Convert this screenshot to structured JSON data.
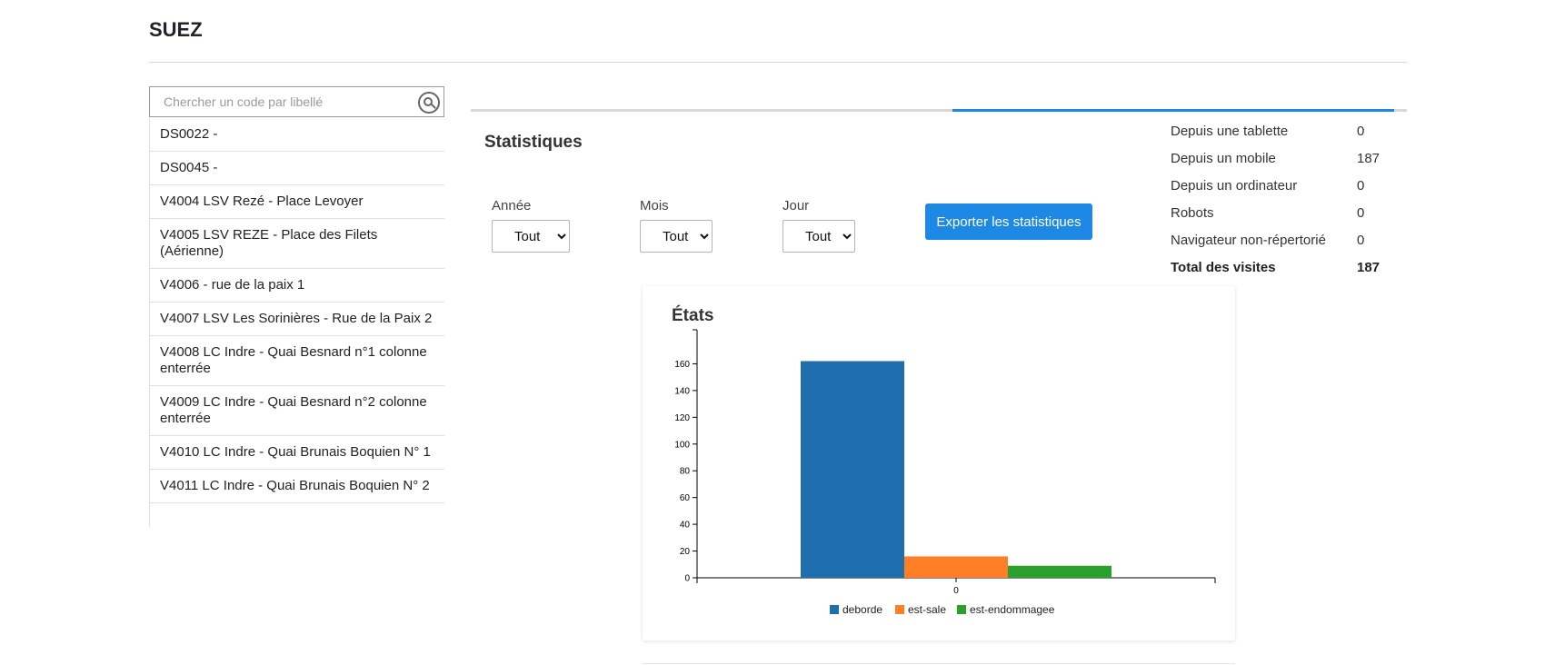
{
  "header": {
    "brand": "SUEZ"
  },
  "search": {
    "placeholder": "Chercher un code par libellé"
  },
  "codes": [
    "DS0022 -",
    "DS0045 -",
    "V4004 LSV Rezé - Place Levoyer",
    "V4005 LSV REZE - Place des Filets (Aérienne)",
    "V4006 - rue de la paix 1",
    "V4007 LSV Les Sorinières - Rue de la Paix 2",
    "V4008 LC Indre - Quai Besnard n°1 colonne enterrée",
    "V4009 LC Indre - Quai Besnard n°2 colonne enterrée",
    "V4010 LC Indre - Quai Brunais Boquien N° 1",
    "V4011 LC Indre - Quai Brunais Boquien N° 2"
  ],
  "stats": {
    "title": "Statistiques",
    "filters": {
      "annee": {
        "label": "Année",
        "value": "Tout"
      },
      "mois": {
        "label": "Mois",
        "value": "Tout"
      },
      "jour": {
        "label": "Jour",
        "value": "Tout"
      }
    },
    "export_label": "Exporter les statistiques"
  },
  "visits": [
    {
      "label": "Depuis une tablette",
      "value": "0"
    },
    {
      "label": "Depuis un mobile",
      "value": "187"
    },
    {
      "label": "Depuis un ordinateur",
      "value": "0"
    },
    {
      "label": "Robots",
      "value": "0"
    },
    {
      "label": "Navigateur non-répertorié",
      "value": "0"
    }
  ],
  "visits_total": {
    "label": "Total des visites",
    "value": "187"
  },
  "colors": {
    "accent": "#1e88e5",
    "deborde": "#1f6fae",
    "est_sale": "#ff7f27",
    "est_endommagee": "#2ca02c"
  },
  "chart_data": {
    "type": "bar",
    "title": "États",
    "categories": [
      "0"
    ],
    "series": [
      {
        "name": "deborde",
        "values": [
          162
        ]
      },
      {
        "name": "est-sale",
        "values": [
          16
        ]
      },
      {
        "name": "est-endommagee",
        "values": [
          9
        ]
      }
    ],
    "ylim": [
      0,
      180
    ],
    "yticks": [
      0,
      20,
      40,
      60,
      80,
      100,
      120,
      140,
      160
    ],
    "legend": "bottom"
  }
}
